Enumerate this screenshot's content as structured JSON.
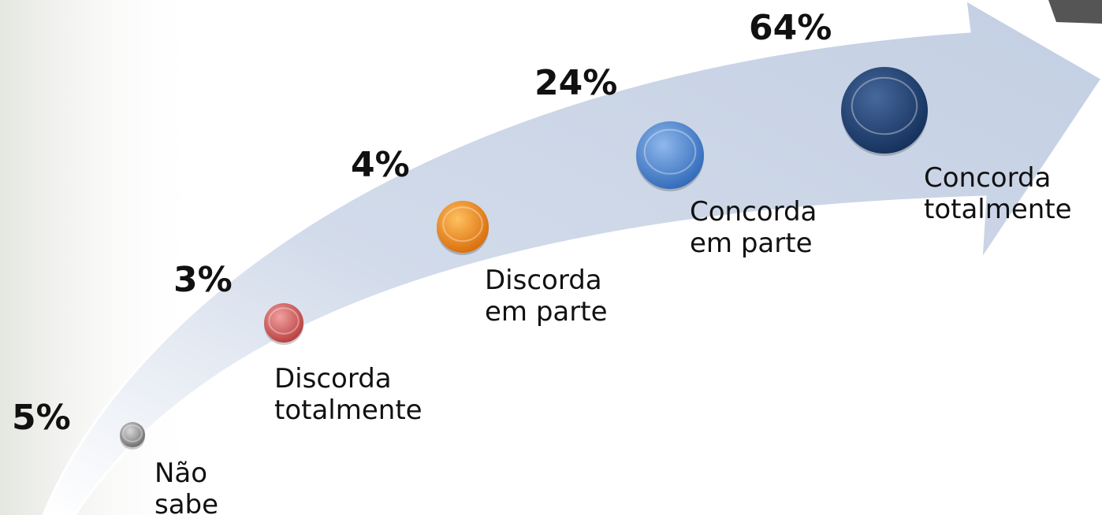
{
  "items": [
    {
      "value": "5%",
      "label": [
        "Não",
        "sabe"
      ]
    },
    {
      "value": "3%",
      "label": [
        "Discorda",
        "totalmente"
      ]
    },
    {
      "value": "4%",
      "label": [
        "Discorda",
        "em parte"
      ]
    },
    {
      "value": "24%",
      "label": [
        "Concorda",
        "em parte"
      ]
    },
    {
      "value": "64%",
      "label": [
        "Concorda",
        "totalmente"
      ]
    }
  ]
}
